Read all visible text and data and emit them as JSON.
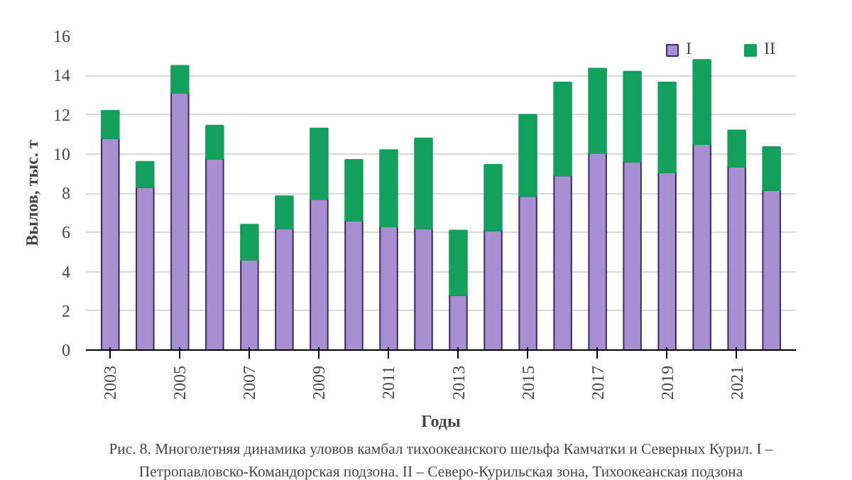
{
  "chart_data": {
    "type": "bar",
    "stacked": true,
    "xlabel": "Годы",
    "ylabel": "Вылов, тыс. т",
    "categories": [
      "2003",
      null,
      "2005",
      null,
      "2007",
      null,
      "2009",
      null,
      "2011",
      null,
      "2013",
      null,
      "2015",
      null,
      "2017",
      null,
      "2019",
      null,
      "2021",
      null
    ],
    "series": [
      {
        "name": "I",
        "color": "#a88fd2",
        "values": [
          10.8,
          8.3,
          13.1,
          9.75,
          4.6,
          6.2,
          7.7,
          6.6,
          6.3,
          6.2,
          2.8,
          6.1,
          7.85,
          8.9,
          10.05,
          9.6,
          9.05,
          10.5,
          9.35,
          8.15
        ]
      },
      {
        "name": "II",
        "color": "#12a05c",
        "values": [
          1.4,
          1.3,
          1.4,
          1.7,
          1.8,
          1.65,
          3.6,
          3.1,
          3.9,
          4.6,
          3.3,
          3.35,
          4.15,
          4.75,
          4.3,
          4.6,
          4.6,
          4.3,
          1.85,
          2.2
        ]
      }
    ],
    "ylim": [
      0,
      16
    ],
    "yticks": [
      0,
      2,
      4,
      6,
      8,
      10,
      12,
      14,
      16
    ],
    "grid": "y",
    "legend": "top right",
    "annotations": [
      "Рис. 8. Многолетняя динамика уловов камбал тихоокеанского шельфа Камчатки и Северных Курил. I –",
      "Петропавловско-Командорская подзона. II – Северо-Курильская зона, Тихоокеанская подзона"
    ]
  }
}
